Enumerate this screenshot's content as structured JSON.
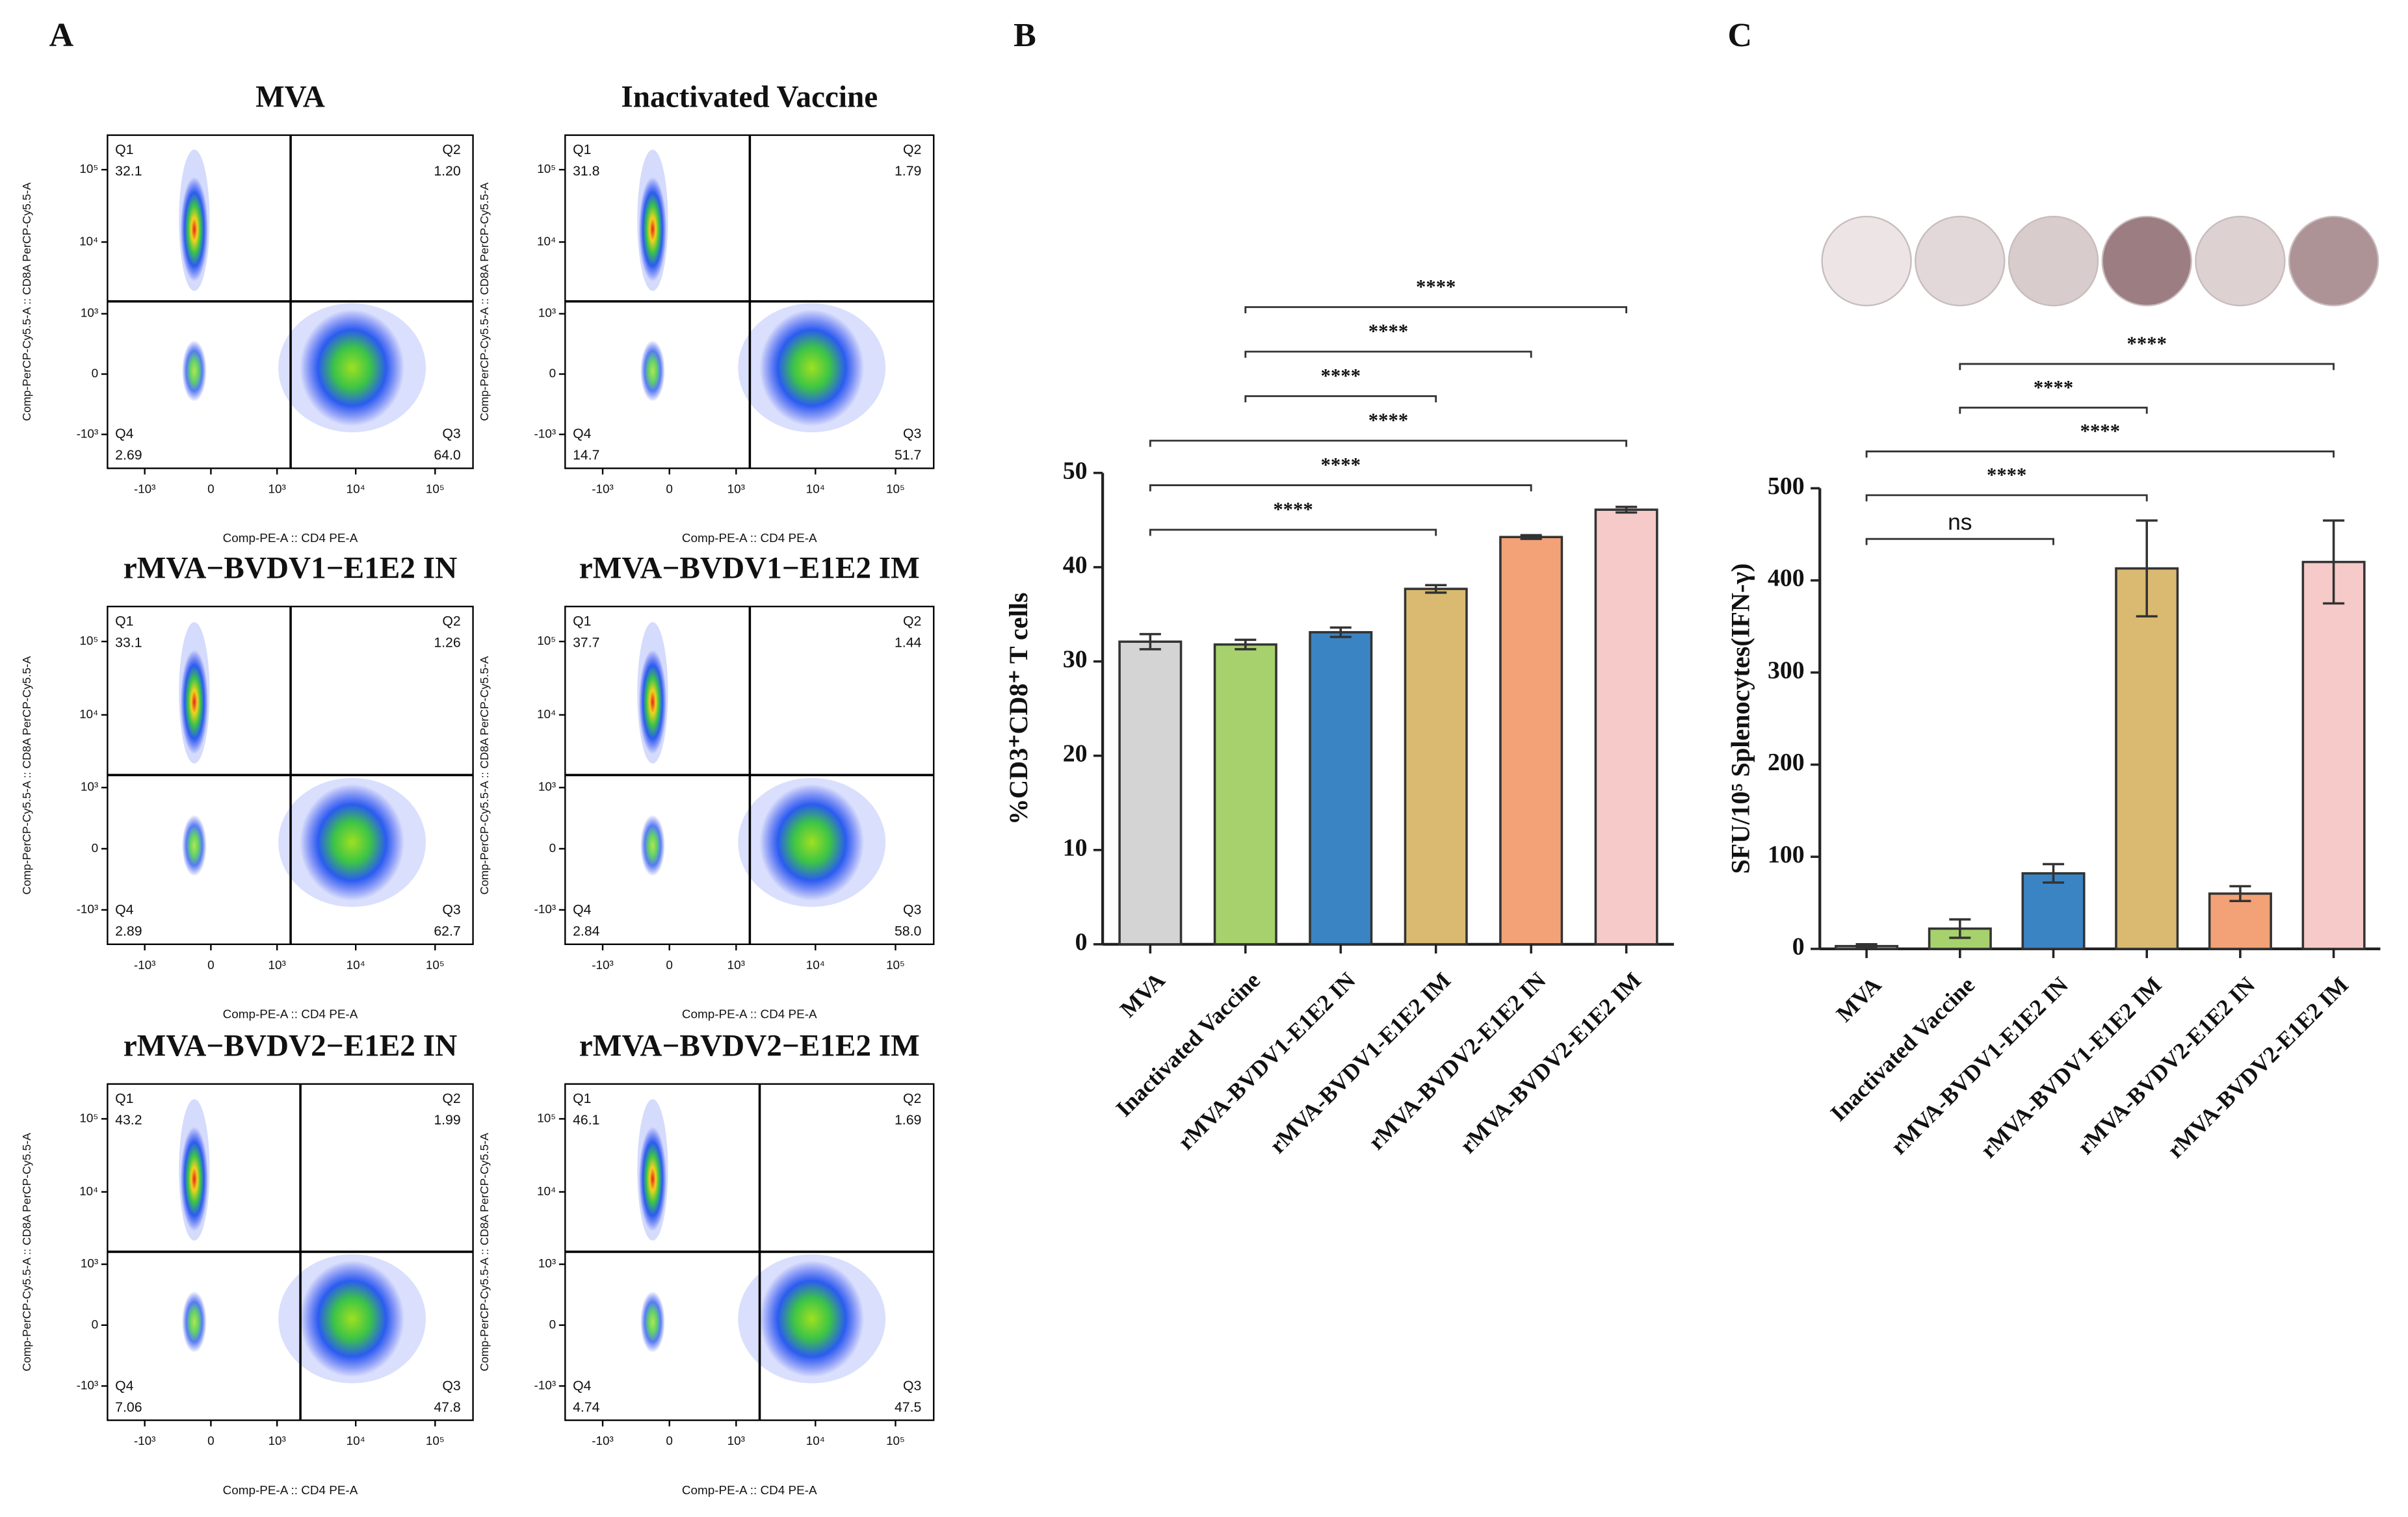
{
  "panel_labels": [
    "A",
    "B",
    "C"
  ],
  "chart_data": [
    {
      "type": "flow",
      "title": "MVA",
      "x_label": "Comp-PE-A :: CD4 PE-A",
      "y_label": "Comp-PerCP-Cy5.5-A :: CD8A PerCP-Cy5.5-A",
      "scale": "biexponential",
      "xlim": [
        -3000,
        300000
      ],
      "ylim": [
        -3000,
        300000
      ],
      "xticks": [
        {
          "value": -1000,
          "label": "-10³"
        },
        0,
        {
          "value": 1000,
          "label": "10³"
        },
        {
          "value": 10000,
          "label": "10⁴"
        },
        {
          "value": 100000,
          "label": "10⁵"
        }
      ],
      "yticks": [
        {
          "value": -1000,
          "label": "-10³"
        },
        0,
        {
          "value": 1000,
          "label": "10³"
        },
        {
          "value": 10000,
          "label": "10⁴"
        },
        {
          "value": 100000,
          "label": "10⁵"
        }
      ],
      "gate_x": 1500,
      "gate_y": 1500,
      "quadrant_names": [
        "Q1",
        "Q2",
        "Q3",
        "Q4"
      ],
      "quadrant_values": [
        "32.1",
        "1.20",
        "64.0",
        "2.69"
      ]
    },
    {
      "type": "flow",
      "title": "Inactivated Vaccine",
      "x_label": "Comp-PE-A :: CD4 PE-A",
      "y_label": "Comp-PerCP-Cy5.5-A :: CD8A PerCP-Cy5.5-A",
      "scale": "biexponential",
      "xlim": [
        -3000,
        300000
      ],
      "ylim": [
        -3000,
        300000
      ],
      "xticks": [
        {
          "value": -1000,
          "label": "-10³"
        },
        0,
        {
          "value": 1000,
          "label": "10³"
        },
        {
          "value": 10000,
          "label": "10⁴"
        },
        {
          "value": 100000,
          "label": "10⁵"
        }
      ],
      "yticks": [
        {
          "value": -1000,
          "label": "-10³"
        },
        0,
        {
          "value": 1000,
          "label": "10³"
        },
        {
          "value": 10000,
          "label": "10⁴"
        },
        {
          "value": 100000,
          "label": "10⁵"
        }
      ],
      "gate_x": 1500,
      "gate_y": 1500,
      "quadrant_names": [
        "Q1",
        "Q2",
        "Q3",
        "Q4"
      ],
      "quadrant_values": [
        "31.8",
        "1.79",
        "51.7",
        "14.7"
      ]
    },
    {
      "type": "flow",
      "title": "rMVA−BVDV1−E1E2 IN",
      "x_label": "Comp-PE-A :: CD4 PE-A",
      "y_label": "Comp-PerCP-Cy5.5-A :: CD8A PerCP-Cy5.5-A",
      "scale": "biexponential",
      "xlim": [
        -3000,
        300000
      ],
      "ylim": [
        -3000,
        300000
      ],
      "xticks": [
        {
          "value": -1000,
          "label": "-10³"
        },
        0,
        {
          "value": 1000,
          "label": "10³"
        },
        {
          "value": 10000,
          "label": "10⁴"
        },
        {
          "value": 100000,
          "label": "10⁵"
        }
      ],
      "yticks": [
        {
          "value": -1000,
          "label": "-10³"
        },
        0,
        {
          "value": 1000,
          "label": "10³"
        },
        {
          "value": 10000,
          "label": "10⁴"
        },
        {
          "value": 100000,
          "label": "10⁵"
        }
      ],
      "gate_x": 1500,
      "gate_y": 1500,
      "quadrant_names": [
        "Q1",
        "Q2",
        "Q3",
        "Q4"
      ],
      "quadrant_values": [
        "33.1",
        "1.26",
        "62.7",
        "2.89"
      ]
    },
    {
      "type": "flow",
      "title": "rMVA−BVDV1−E1E2 IM",
      "x_label": "Comp-PE-A :: CD4 PE-A",
      "y_label": "Comp-PerCP-Cy5.5-A :: CD8A PerCP-Cy5.5-A",
      "scale": "biexponential",
      "xlim": [
        -3000,
        300000
      ],
      "ylim": [
        -3000,
        300000
      ],
      "xticks": [
        {
          "value": -1000,
          "label": "-10³"
        },
        0,
        {
          "value": 1000,
          "label": "10³"
        },
        {
          "value": 10000,
          "label": "10⁴"
        },
        {
          "value": 100000,
          "label": "10⁵"
        }
      ],
      "yticks": [
        {
          "value": -1000,
          "label": "-10³"
        },
        0,
        {
          "value": 1000,
          "label": "10³"
        },
        {
          "value": 10000,
          "label": "10⁴"
        },
        {
          "value": 100000,
          "label": "10⁵"
        }
      ],
      "gate_x": 1500,
      "gate_y": 1500,
      "quadrant_names": [
        "Q1",
        "Q2",
        "Q3",
        "Q4"
      ],
      "quadrant_values": [
        "37.7",
        "1.44",
        "58.0",
        "2.84"
      ]
    },
    {
      "type": "flow",
      "title": "rMVA−BVDV2−E1E2 IN",
      "x_label": "Comp-PE-A :: CD4 PE-A",
      "y_label": "Comp-PerCP-Cy5.5-A :: CD8A PerCP-Cy5.5-A",
      "scale": "biexponential",
      "xlim": [
        -3000,
        300000
      ],
      "ylim": [
        -3000,
        300000
      ],
      "xticks": [
        {
          "value": -1000,
          "label": "-10³"
        },
        0,
        {
          "value": 1000,
          "label": "10³"
        },
        {
          "value": 10000,
          "label": "10⁴"
        },
        {
          "value": 100000,
          "label": "10⁵"
        }
      ],
      "yticks": [
        {
          "value": -1000,
          "label": "-10³"
        },
        0,
        {
          "value": 1000,
          "label": "10³"
        },
        {
          "value": 10000,
          "label": "10⁴"
        },
        {
          "value": 100000,
          "label": "10⁵"
        }
      ],
      "gate_x": 2000,
      "gate_y": 1500,
      "quadrant_names": [
        "Q1",
        "Q2",
        "Q3",
        "Q4"
      ],
      "quadrant_values": [
        "43.2",
        "1.99",
        "47.8",
        "7.06"
      ]
    },
    {
      "type": "flow",
      "title": "rMVA−BVDV2−E1E2 IM",
      "x_label": "Comp-PE-A :: CD4 PE-A",
      "y_label": "Comp-PerCP-Cy5.5-A :: CD8A PerCP-Cy5.5-A",
      "scale": "biexponential",
      "xlim": [
        -3000,
        300000
      ],
      "ylim": [
        -3000,
        300000
      ],
      "xticks": [
        {
          "value": -1000,
          "label": "-10³"
        },
        0,
        {
          "value": 1000,
          "label": "10³"
        },
        {
          "value": 10000,
          "label": "10⁴"
        },
        {
          "value": 100000,
          "label": "10⁵"
        }
      ],
      "yticks": [
        {
          "value": -1000,
          "label": "-10³"
        },
        0,
        {
          "value": 1000,
          "label": "10³"
        },
        {
          "value": 10000,
          "label": "10⁴"
        },
        {
          "value": 100000,
          "label": "10⁵"
        }
      ],
      "gate_x": 2000,
      "gate_y": 1500,
      "quadrant_names": [
        "Q1",
        "Q2",
        "Q3",
        "Q4"
      ],
      "quadrant_values": [
        "46.1",
        "1.69",
        "47.5",
        "4.74"
      ]
    },
    {
      "type": "bar",
      "y_label": "%CD3⁺CD8⁺ T cells",
      "categories": [
        "MVA",
        "Inactivated Vaccine",
        "rMVA-BVDV1-E1E2 IN",
        "rMVA-BVDV1-E1E2 IM",
        "rMVA-BVDV2-E1E2 IN",
        "rMVA-BVDV2-E1E2 IM"
      ],
      "values": [
        32.1,
        31.8,
        33.1,
        37.7,
        43.2,
        46.1
      ],
      "errors": [
        0.8,
        0.5,
        0.5,
        0.4,
        0.2,
        0.3
      ],
      "colors": [
        "#d4d4d4",
        "#a6d16c",
        "#3b84c4",
        "#d9ba70",
        "#f2a276",
        "#f6cac8"
      ],
      "ylim": [
        0,
        50
      ],
      "yticks": [
        0,
        10,
        20,
        30,
        40,
        50
      ],
      "brackets": [
        {
          "from": 0,
          "to": 3,
          "label": "****"
        },
        {
          "from": 0,
          "to": 4,
          "label": "****"
        },
        {
          "from": 0,
          "to": 5,
          "label": "****"
        },
        {
          "from": 1,
          "to": 3,
          "label": "****"
        },
        {
          "from": 1,
          "to": 4,
          "label": "****"
        },
        {
          "from": 1,
          "to": 5,
          "label": "****"
        }
      ]
    },
    {
      "type": "bar",
      "y_label": "SFU/10⁵ Splenocytes(IFN-γ)",
      "categories": [
        "MVA",
        "Inactivated Vaccine",
        "rMVA-BVDV1-E1E2 IN",
        "rMVA-BVDV1-E1E2 IM",
        "rMVA-BVDV2-E1E2 IN",
        "rMVA-BVDV2-E1E2 IM"
      ],
      "values": [
        3,
        22,
        82,
        413,
        60,
        420
      ],
      "errors": [
        2,
        10,
        10,
        52,
        8,
        45
      ],
      "colors": [
        "#d4d4d4",
        "#a6d16c",
        "#3b84c4",
        "#d9ba70",
        "#f2a276",
        "#f6cac8"
      ],
      "ylim": [
        0,
        500
      ],
      "yticks": [
        0,
        100,
        200,
        300,
        400,
        500
      ],
      "brackets": [
        {
          "from": 0,
          "to": 2,
          "label": "ns"
        },
        {
          "from": 0,
          "to": 3,
          "label": "****"
        },
        {
          "from": 0,
          "to": 5,
          "label": "****"
        },
        {
          "from": 1,
          "to": 3,
          "label": "****"
        },
        {
          "from": 1,
          "to": 5,
          "label": "****"
        }
      ]
    }
  ]
}
